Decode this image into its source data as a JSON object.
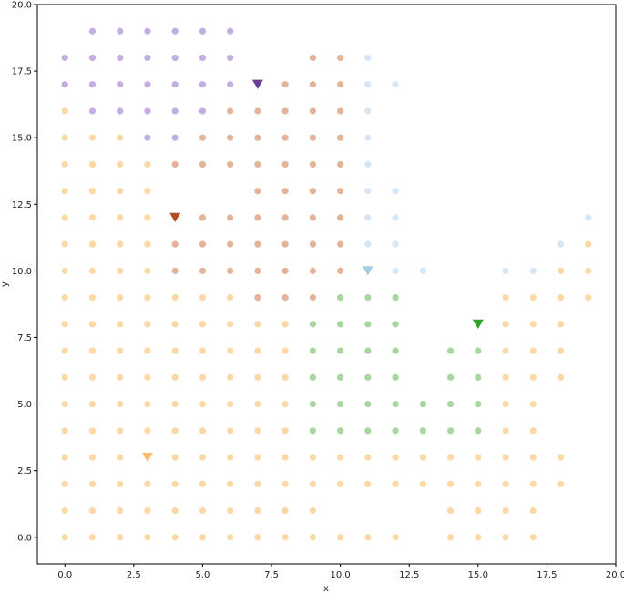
{
  "chart_data": {
    "type": "scatter",
    "title": "",
    "xlabel": "x",
    "ylabel": "y",
    "xlim": [
      -1,
      20
    ],
    "ylim": [
      -1,
      20
    ],
    "xticks": [
      0,
      2.5,
      5,
      7.5,
      10,
      12.5,
      15,
      17.5,
      20
    ],
    "xtick_labels": [
      "0.0",
      "2.5",
      "5.0",
      "7.5",
      "10.0",
      "12.5",
      "15.0",
      "17.5",
      "20.0"
    ],
    "yticks": [
      0,
      2.5,
      5,
      7.5,
      10,
      12.5,
      15,
      17.5,
      20
    ],
    "ytick_labels": [
      "0.0",
      "2.5",
      "5.0",
      "7.5",
      "10.0",
      "12.5",
      "15.0",
      "17.5",
      "20.0"
    ],
    "grid": false,
    "series": [
      {
        "color": "#fbd9a6",
        "marker": "circle",
        "points": [
          [
            0,
            0
          ],
          [
            1,
            0
          ],
          [
            2,
            0
          ],
          [
            3,
            0
          ],
          [
            4,
            0
          ],
          [
            5,
            0
          ],
          [
            6,
            0
          ],
          [
            7,
            0
          ],
          [
            8,
            0
          ],
          [
            9,
            0
          ],
          [
            10,
            0
          ],
          [
            11,
            0
          ],
          [
            12,
            0
          ],
          [
            14,
            0
          ],
          [
            15,
            0
          ],
          [
            16,
            0
          ],
          [
            17,
            0
          ],
          [
            0,
            1
          ],
          [
            1,
            1
          ],
          [
            2,
            1
          ],
          [
            3,
            1
          ],
          [
            4,
            1
          ],
          [
            5,
            1
          ],
          [
            6,
            1
          ],
          [
            7,
            1
          ],
          [
            8,
            1
          ],
          [
            9,
            1
          ],
          [
            14,
            1
          ],
          [
            15,
            1
          ],
          [
            16,
            1
          ],
          [
            17,
            1
          ],
          [
            0,
            2
          ],
          [
            1,
            2
          ],
          [
            2,
            2
          ],
          [
            3,
            2
          ],
          [
            4,
            2
          ],
          [
            5,
            2
          ],
          [
            6,
            2
          ],
          [
            7,
            2
          ],
          [
            8,
            2
          ],
          [
            9,
            2
          ],
          [
            10,
            2
          ],
          [
            11,
            2
          ],
          [
            12,
            2
          ],
          [
            13,
            2
          ],
          [
            14,
            2
          ],
          [
            15,
            2
          ],
          [
            16,
            2
          ],
          [
            17,
            2
          ],
          [
            18,
            2
          ],
          [
            0,
            3
          ],
          [
            1,
            3
          ],
          [
            2,
            3
          ],
          [
            4,
            3
          ],
          [
            5,
            3
          ],
          [
            6,
            3
          ],
          [
            7,
            3
          ],
          [
            8,
            3
          ],
          [
            9,
            3
          ],
          [
            10,
            3
          ],
          [
            11,
            3
          ],
          [
            12,
            3
          ],
          [
            13,
            3
          ],
          [
            14,
            3
          ],
          [
            15,
            3
          ],
          [
            16,
            3
          ],
          [
            17,
            3
          ],
          [
            18,
            3
          ],
          [
            0,
            4
          ],
          [
            1,
            4
          ],
          [
            2,
            4
          ],
          [
            3,
            4
          ],
          [
            4,
            4
          ],
          [
            5,
            4
          ],
          [
            6,
            4
          ],
          [
            7,
            4
          ],
          [
            8,
            4
          ],
          [
            15,
            4
          ],
          [
            16,
            4
          ],
          [
            17,
            4
          ],
          [
            0,
            5
          ],
          [
            1,
            5
          ],
          [
            2,
            5
          ],
          [
            3,
            5
          ],
          [
            4,
            5
          ],
          [
            5,
            5
          ],
          [
            6,
            5
          ],
          [
            7,
            5
          ],
          [
            8,
            5
          ],
          [
            16,
            5
          ],
          [
            17,
            5
          ],
          [
            0,
            6
          ],
          [
            1,
            6
          ],
          [
            2,
            6
          ],
          [
            3,
            6
          ],
          [
            4,
            6
          ],
          [
            5,
            6
          ],
          [
            6,
            6
          ],
          [
            7,
            6
          ],
          [
            8,
            6
          ],
          [
            16,
            6
          ],
          [
            17,
            6
          ],
          [
            18,
            6
          ],
          [
            0,
            7
          ],
          [
            1,
            7
          ],
          [
            2,
            7
          ],
          [
            3,
            7
          ],
          [
            4,
            7
          ],
          [
            5,
            7
          ],
          [
            6,
            7
          ],
          [
            7,
            7
          ],
          [
            8,
            7
          ],
          [
            16,
            7
          ],
          [
            17,
            7
          ],
          [
            18,
            7
          ],
          [
            0,
            8
          ],
          [
            1,
            8
          ],
          [
            2,
            8
          ],
          [
            3,
            8
          ],
          [
            4,
            8
          ],
          [
            5,
            8
          ],
          [
            6,
            8
          ],
          [
            7,
            8
          ],
          [
            8,
            8
          ],
          [
            16,
            8
          ],
          [
            17,
            8
          ],
          [
            18,
            8
          ],
          [
            0,
            9
          ],
          [
            1,
            9
          ],
          [
            2,
            9
          ],
          [
            3,
            9
          ],
          [
            4,
            9
          ],
          [
            5,
            9
          ],
          [
            6,
            9
          ],
          [
            7,
            9
          ],
          [
            16,
            9
          ],
          [
            17,
            9
          ],
          [
            18,
            9
          ],
          [
            19,
            9
          ],
          [
            0,
            10
          ],
          [
            1,
            10
          ],
          [
            2,
            10
          ],
          [
            3,
            10
          ],
          [
            18,
            10
          ],
          [
            19,
            10
          ],
          [
            0,
            11
          ],
          [
            1,
            11
          ],
          [
            2,
            11
          ],
          [
            3,
            11
          ],
          [
            19,
            11
          ],
          [
            0,
            12
          ],
          [
            1,
            12
          ],
          [
            2,
            12
          ],
          [
            3,
            12
          ],
          [
            0,
            13
          ],
          [
            1,
            13
          ],
          [
            2,
            13
          ],
          [
            3,
            13
          ],
          [
            0,
            14
          ],
          [
            1,
            14
          ],
          [
            2,
            14
          ],
          [
            3,
            14
          ],
          [
            0,
            15
          ],
          [
            1,
            15
          ],
          [
            2,
            15
          ],
          [
            0,
            16
          ]
        ]
      },
      {
        "color": "#e3b49a",
        "marker": "circle",
        "points": [
          [
            9,
            18
          ],
          [
            10,
            18
          ],
          [
            8,
            17
          ],
          [
            9,
            17
          ],
          [
            10,
            17
          ],
          [
            6,
            16
          ],
          [
            7,
            16
          ],
          [
            8,
            16
          ],
          [
            9,
            16
          ],
          [
            10,
            16
          ],
          [
            5,
            15
          ],
          [
            6,
            15
          ],
          [
            7,
            15
          ],
          [
            8,
            15
          ],
          [
            9,
            15
          ],
          [
            10,
            15
          ],
          [
            4,
            14
          ],
          [
            5,
            14
          ],
          [
            6,
            14
          ],
          [
            7,
            14
          ],
          [
            8,
            14
          ],
          [
            9,
            14
          ],
          [
            10,
            14
          ],
          [
            7,
            13
          ],
          [
            8,
            13
          ],
          [
            9,
            13
          ],
          [
            10,
            13
          ],
          [
            5,
            12
          ],
          [
            6,
            12
          ],
          [
            7,
            12
          ],
          [
            8,
            12
          ],
          [
            9,
            12
          ],
          [
            10,
            12
          ],
          [
            4,
            11
          ],
          [
            5,
            11
          ],
          [
            6,
            11
          ],
          [
            7,
            11
          ],
          [
            8,
            11
          ],
          [
            9,
            11
          ],
          [
            10,
            11
          ],
          [
            4,
            10
          ],
          [
            5,
            10
          ],
          [
            6,
            10
          ],
          [
            7,
            10
          ],
          [
            8,
            10
          ],
          [
            9,
            10
          ],
          [
            10,
            10
          ],
          [
            7,
            9
          ],
          [
            8,
            9
          ],
          [
            9,
            9
          ]
        ]
      },
      {
        "color": "#c2aee0",
        "marker": "circle",
        "points": [
          [
            1,
            19
          ],
          [
            2,
            19
          ],
          [
            3,
            19
          ],
          [
            4,
            19
          ],
          [
            5,
            19
          ],
          [
            6,
            19
          ],
          [
            0,
            18
          ],
          [
            1,
            18
          ],
          [
            2,
            18
          ],
          [
            3,
            18
          ],
          [
            4,
            18
          ],
          [
            5,
            18
          ],
          [
            6,
            18
          ],
          [
            0,
            17
          ],
          [
            1,
            17
          ],
          [
            2,
            17
          ],
          [
            3,
            17
          ],
          [
            4,
            17
          ],
          [
            5,
            17
          ],
          [
            6,
            17
          ],
          [
            1,
            16
          ],
          [
            2,
            16
          ],
          [
            3,
            16
          ],
          [
            4,
            16
          ],
          [
            5,
            16
          ],
          [
            3,
            15
          ],
          [
            4,
            15
          ]
        ]
      },
      {
        "color": "#d6e6f5",
        "marker": "circle",
        "points": [
          [
            11,
            18
          ],
          [
            11,
            17
          ],
          [
            12,
            17
          ],
          [
            11,
            16
          ],
          [
            11,
            15
          ],
          [
            11,
            14
          ],
          [
            11,
            13
          ],
          [
            12,
            13
          ],
          [
            11,
            12
          ],
          [
            12,
            12
          ],
          [
            19,
            12
          ],
          [
            11,
            11
          ],
          [
            12,
            11
          ],
          [
            18,
            11
          ],
          [
            12,
            10
          ],
          [
            13,
            10
          ],
          [
            16,
            10
          ],
          [
            17,
            10
          ]
        ]
      },
      {
        "color": "#a8d5a0",
        "marker": "circle",
        "points": [
          [
            10,
            9
          ],
          [
            11,
            9
          ],
          [
            12,
            9
          ],
          [
            9,
            8
          ],
          [
            10,
            8
          ],
          [
            11,
            8
          ],
          [
            12,
            8
          ],
          [
            9,
            7
          ],
          [
            10,
            7
          ],
          [
            11,
            7
          ],
          [
            12,
            7
          ],
          [
            14,
            7
          ],
          [
            15,
            7
          ],
          [
            9,
            6
          ],
          [
            10,
            6
          ],
          [
            11,
            6
          ],
          [
            12,
            6
          ],
          [
            14,
            6
          ],
          [
            15,
            6
          ],
          [
            9,
            5
          ],
          [
            10,
            5
          ],
          [
            11,
            5
          ],
          [
            12,
            5
          ],
          [
            13,
            5
          ],
          [
            14,
            5
          ],
          [
            15,
            5
          ],
          [
            9,
            4
          ],
          [
            10,
            4
          ],
          [
            11,
            4
          ],
          [
            12,
            4
          ],
          [
            13,
            4
          ],
          [
            14,
            4
          ],
          [
            15,
            4
          ]
        ]
      }
    ],
    "centers": [
      {
        "x": 7,
        "y": 17,
        "color": "#6a3d9a",
        "marker": "triangle-down"
      },
      {
        "x": 4,
        "y": 12,
        "color": "#b14d22",
        "marker": "triangle-down"
      },
      {
        "x": 11,
        "y": 10,
        "color": "#a6cee3",
        "marker": "triangle-down"
      },
      {
        "x": 15,
        "y": 8,
        "color": "#33a02c",
        "marker": "triangle-down"
      },
      {
        "x": 3,
        "y": 3,
        "color": "#fdbf6f",
        "marker": "triangle-down"
      }
    ]
  }
}
